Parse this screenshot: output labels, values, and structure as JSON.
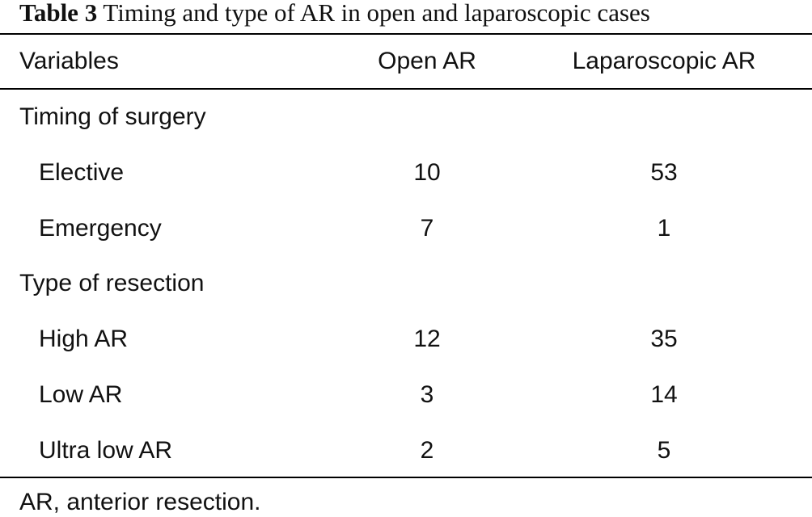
{
  "caption": {
    "label": "Table 3",
    "text": "Timing and type of AR in open and laparoscopic cases"
  },
  "headers": {
    "variables": "Variables",
    "open": "Open AR",
    "lap": "Laparoscopic AR"
  },
  "rows": [
    {
      "label": "Timing of surgery",
      "open": "",
      "lap": ""
    },
    {
      "label": "Elective",
      "open": "10",
      "lap": "53"
    },
    {
      "label": "Emergency",
      "open": "7",
      "lap": "1"
    },
    {
      "label": "Type of resection",
      "open": "",
      "lap": ""
    },
    {
      "label": "High AR",
      "open": "12",
      "lap": "35"
    },
    {
      "label": "Low AR",
      "open": "3",
      "lap": "14"
    },
    {
      "label": "Ultra low AR",
      "open": "2",
      "lap": "5"
    }
  ],
  "footnote": "AR, anterior resection."
}
